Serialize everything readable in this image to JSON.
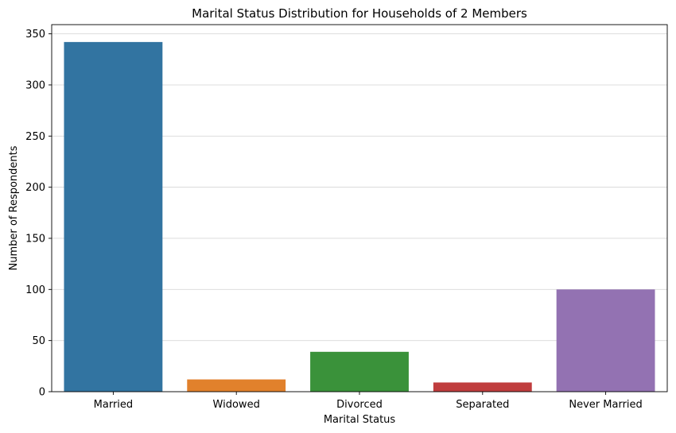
{
  "chart_data": {
    "type": "bar",
    "title": "Marital Status Distribution for Households of 2 Members",
    "xlabel": "Marital Status",
    "ylabel": "Number of Respondents",
    "categories": [
      "Married",
      "Widowed",
      "Divorced",
      "Separated",
      "Never Married"
    ],
    "values": [
      342,
      12,
      39,
      9,
      100
    ],
    "colors": [
      "#3274a1",
      "#e1812c",
      "#3a923a",
      "#c03d3e",
      "#9372b2"
    ],
    "ylim": [
      0,
      359
    ],
    "yticks": [
      0,
      50,
      100,
      150,
      200,
      250,
      300,
      350
    ],
    "grid": "horizontal",
    "legend": "none"
  }
}
